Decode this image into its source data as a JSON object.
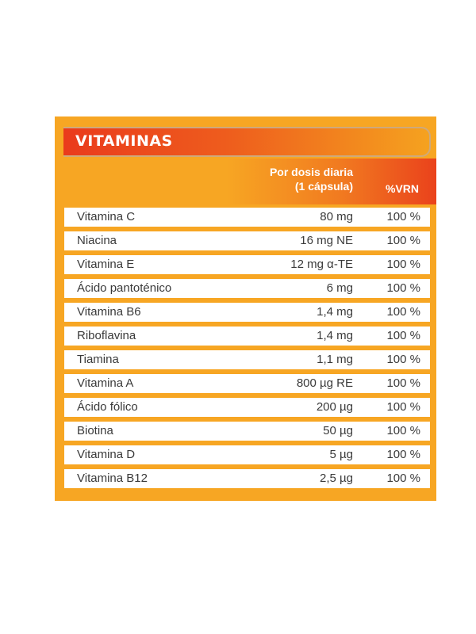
{
  "table": {
    "title": "VITAMINAS",
    "header": {
      "dose_line1": "Por dosis diaria",
      "dose_line2": "(1 cápsula)",
      "vrn": "%VRN"
    },
    "rows": [
      {
        "name": "Vitamina C",
        "dose": "80 mg",
        "vrn": "100 %"
      },
      {
        "name": "Niacina",
        "dose": "16 mg NE",
        "vrn": "100 %"
      },
      {
        "name": "Vitamina E",
        "dose": "12 mg α-TE",
        "vrn": "100 %"
      },
      {
        "name": "Ácido pantoténico",
        "dose": "6 mg",
        "vrn": "100 %"
      },
      {
        "name": "Vitamina B6",
        "dose": "1,4 mg",
        "vrn": "100 %"
      },
      {
        "name": "Riboflavina",
        "dose": "1,4 mg",
        "vrn": "100 %"
      },
      {
        "name": "Tiamina",
        "dose": "1,1 mg",
        "vrn": "100 %"
      },
      {
        "name": "Vitamina A",
        "dose": "800 µg RE",
        "vrn": "100 %"
      },
      {
        "name": "Ácido fólico",
        "dose": "200 µg",
        "vrn": "100 %"
      },
      {
        "name": "Biotina",
        "dose": "50 µg",
        "vrn": "100 %"
      },
      {
        "name": "Vitamina D",
        "dose": "5 µg",
        "vrn": "100 %"
      },
      {
        "name": "Vitamina B12",
        "dose": "2,5 µg",
        "vrn": "100 %"
      }
    ]
  },
  "colors": {
    "panel": "#f7a623",
    "title_red": "#ea3a1c",
    "row_bg": "#ffffff",
    "text": "#3a3a3a"
  }
}
